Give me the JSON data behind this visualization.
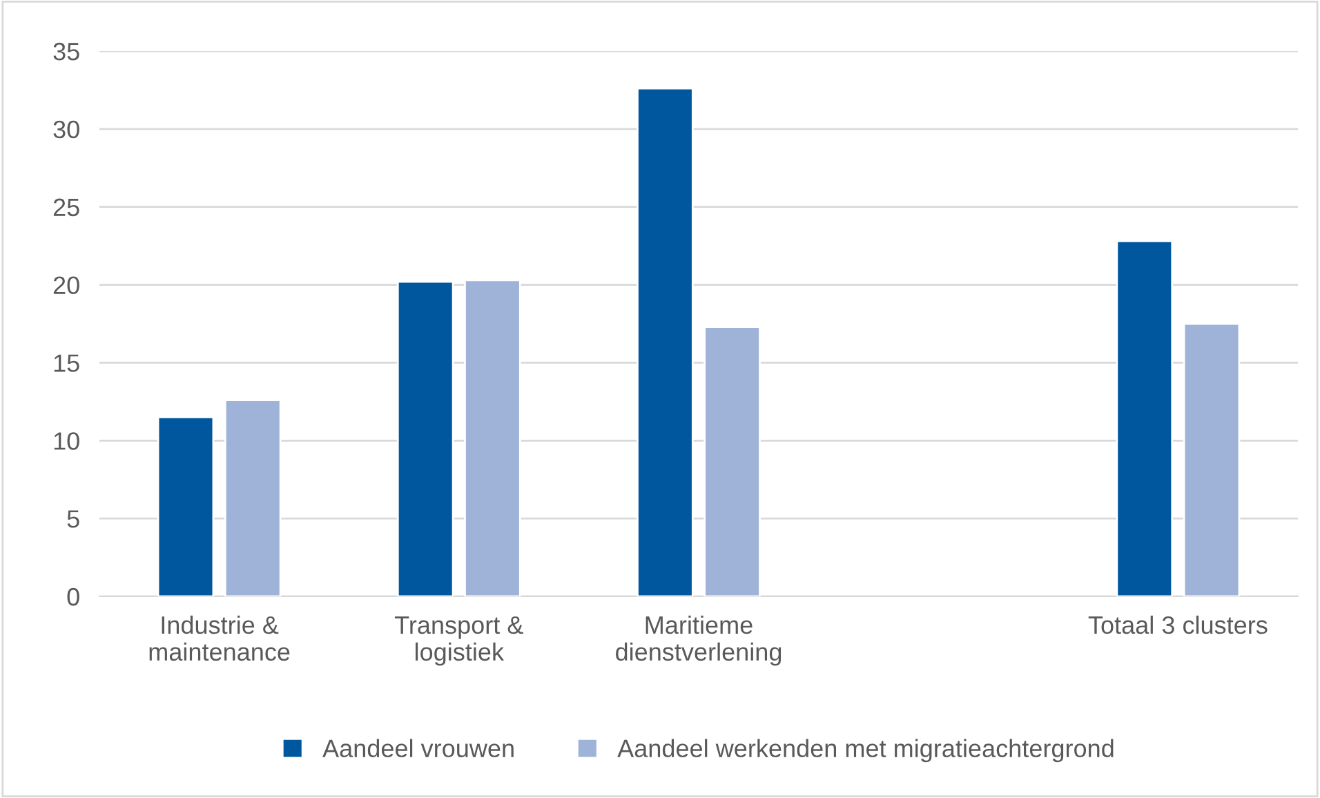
{
  "chart_data": {
    "type": "bar",
    "categories": [
      "Industrie &\nmaintenance",
      "Transport &\nlogistiek",
      "Maritieme\ndienstverlening",
      null,
      "Totaal 3 clusters"
    ],
    "series": [
      {
        "name": "Aandeel vrouwen",
        "color": "#00579d",
        "values": [
          11.5,
          20.2,
          32.6,
          null,
          22.8
        ]
      },
      {
        "name": "Aandeel werkenden met migratieachtergrond",
        "color": "#9fb3d9",
        "values": [
          12.6,
          20.3,
          17.3,
          null,
          17.5
        ]
      }
    ],
    "ylim": [
      0,
      35
    ],
    "yticks": [
      0,
      5,
      10,
      15,
      20,
      25,
      30,
      35
    ],
    "grid": "y",
    "legend": "bottom"
  }
}
